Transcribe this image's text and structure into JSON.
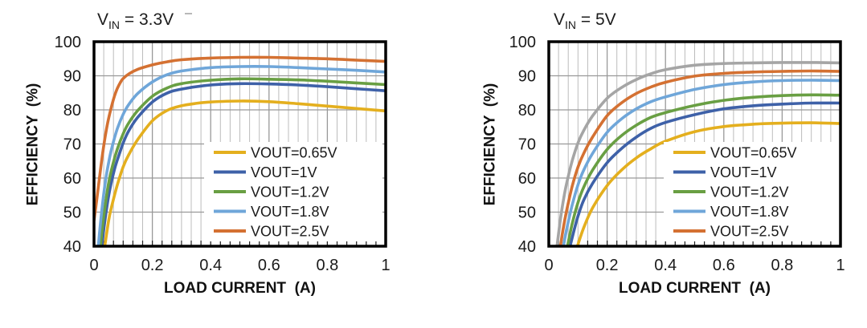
{
  "chart_data": [
    {
      "type": "line",
      "title": {
        "base": "V",
        "subscript": "IN",
        "rest": " = 3.3V",
        "text": "VIN = 3.3V"
      },
      "xlabel": "LOAD CURRENT  (A)",
      "ylabel": "EFFICIENCY  (%)",
      "xlim": [
        0,
        1
      ],
      "ylim": [
        40,
        100
      ],
      "xticks": {
        "values": [
          0,
          0.2,
          0.4,
          0.6,
          0.8,
          1
        ],
        "labels": [
          "0",
          "0.2",
          "0.4",
          "0.6",
          "0.8",
          "1"
        ]
      },
      "yticks": {
        "values": [
          40,
          50,
          60,
          70,
          80,
          90,
          100
        ],
        "labels": [
          "40",
          "50",
          "60",
          "70",
          "80",
          "90",
          "100"
        ]
      },
      "x_minor_divisions": 30,
      "grid": {
        "minor_color": "#bcbcbc",
        "major_color": "#999999",
        "horizontal_color": "#999999",
        "on": true
      },
      "legend": {
        "position": "inside-lower-right",
        "items": [
          {
            "label": "VOUT=0.65V",
            "color": "#E4AF1E"
          },
          {
            "label": "VOUT=1V",
            "color": "#3E61A8"
          },
          {
            "label": "VOUT=1.2V",
            "color": "#699F43"
          },
          {
            "label": "VOUT=1.8V",
            "color": "#6FA6D9"
          },
          {
            "label": "VOUT=2.5V",
            "color": "#D47132"
          }
        ]
      },
      "series": [
        {
          "name": "VOUT=0.65V",
          "legend_label": "VOUT=0.65V",
          "color": "#E4AF1E",
          "points": [
            [
              0.037,
              40
            ],
            [
              0.05,
              47.5
            ],
            [
              0.06,
              51.5
            ],
            [
              0.08,
              58
            ],
            [
              0.1,
              63.3
            ],
            [
              0.12,
              67
            ],
            [
              0.15,
              71.3
            ],
            [
              0.2,
              76.8
            ],
            [
              0.25,
              79.8
            ],
            [
              0.3,
              81.2
            ],
            [
              0.35,
              81.9
            ],
            [
              0.4,
              82.3
            ],
            [
              0.5,
              82.6
            ],
            [
              0.6,
              82.4
            ],
            [
              0.7,
              81.8
            ],
            [
              0.8,
              81.1
            ],
            [
              0.9,
              80.4
            ],
            [
              1,
              79.7
            ]
          ]
        },
        {
          "name": "VOUT=1V",
          "legend_label": "VOUT=1V",
          "color": "#3E61A8",
          "points": [
            [
              0.027,
              40
            ],
            [
              0.035,
              46
            ],
            [
              0.045,
              52
            ],
            [
              0.055,
              57
            ],
            [
              0.07,
              62.5
            ],
            [
              0.08,
              65.3
            ],
            [
              0.1,
              70.3
            ],
            [
              0.12,
              74
            ],
            [
              0.15,
              77.8
            ],
            [
              0.2,
              82.3
            ],
            [
              0.25,
              84.9
            ],
            [
              0.3,
              86.1
            ],
            [
              0.4,
              87.3
            ],
            [
              0.5,
              87.7
            ],
            [
              0.6,
              87.6
            ],
            [
              0.7,
              87.3
            ],
            [
              0.8,
              86.8
            ],
            [
              0.9,
              86.2
            ],
            [
              1,
              85.6
            ]
          ]
        },
        {
          "name": "VOUT=1.2V",
          "legend_label": "VOUT=1.2V",
          "color": "#699F43",
          "points": [
            [
              0.022,
              40
            ],
            [
              0.03,
              46.5
            ],
            [
              0.04,
              53
            ],
            [
              0.05,
              58.5
            ],
            [
              0.06,
              62.5
            ],
            [
              0.08,
              68.5
            ],
            [
              0.1,
              73
            ],
            [
              0.12,
              76.3
            ],
            [
              0.15,
              79.8
            ],
            [
              0.2,
              84
            ],
            [
              0.25,
              86.4
            ],
            [
              0.3,
              87.7
            ],
            [
              0.4,
              88.7
            ],
            [
              0.5,
              89.1
            ],
            [
              0.6,
              89
            ],
            [
              0.7,
              88.8
            ],
            [
              0.8,
              88.4
            ],
            [
              0.9,
              87.9
            ],
            [
              1,
              87.4
            ]
          ]
        },
        {
          "name": "VOUT=1.8V",
          "legend_label": "VOUT=1.8V",
          "color": "#6FA6D9",
          "points": [
            [
              0.015,
              40
            ],
            [
              0.02,
              45
            ],
            [
              0.03,
              53
            ],
            [
              0.04,
              59.5
            ],
            [
              0.05,
              64.5
            ],
            [
              0.06,
              68.5
            ],
            [
              0.08,
              74.5
            ],
            [
              0.1,
              78.7
            ],
            [
              0.12,
              81.7
            ],
            [
              0.15,
              84.8
            ],
            [
              0.2,
              88.2
            ],
            [
              0.25,
              90.3
            ],
            [
              0.3,
              91.4
            ],
            [
              0.4,
              92.4
            ],
            [
              0.5,
              92.7
            ],
            [
              0.6,
              92.7
            ],
            [
              0.7,
              92.4
            ],
            [
              0.8,
              92
            ],
            [
              0.9,
              91.6
            ],
            [
              1,
              91.1
            ]
          ]
        },
        {
          "name": "VOUT=2.5V",
          "legend_label": "VOUT=2.5V",
          "color": "#D47132",
          "points": [
            [
              0,
              47.5
            ],
            [
              0.01,
              54
            ],
            [
              0.02,
              61
            ],
            [
              0.03,
              67.5
            ],
            [
              0.04,
              73
            ],
            [
              0.05,
              77.5
            ],
            [
              0.06,
              81
            ],
            [
              0.07,
              84
            ],
            [
              0.08,
              86.3
            ],
            [
              0.09,
              88
            ],
            [
              0.1,
              89.2
            ],
            [
              0.12,
              90.6
            ],
            [
              0.15,
              91.9
            ],
            [
              0.2,
              93.2
            ],
            [
              0.25,
              94.1
            ],
            [
              0.3,
              94.7
            ],
            [
              0.4,
              95.2
            ],
            [
              0.5,
              95.4
            ],
            [
              0.6,
              95.4
            ],
            [
              0.7,
              95.2
            ],
            [
              0.8,
              95
            ],
            [
              0.9,
              94.6
            ],
            [
              1,
              94.2
            ]
          ]
        }
      ]
    },
    {
      "type": "line",
      "title": {
        "base": "V",
        "subscript": "IN",
        "rest": " = 5V",
        "text": "VIN = 5V"
      },
      "xlabel": "LOAD CURRENT  (A)",
      "ylabel": "EFFICIENCY  (%)",
      "xlim": [
        0,
        1
      ],
      "ylim": [
        40,
        100
      ],
      "xticks": {
        "values": [
          0,
          0.2,
          0.4,
          0.6,
          0.8,
          1
        ],
        "labels": [
          "0",
          "0.2",
          "0.4",
          "0.6",
          "0.8",
          "1"
        ]
      },
      "yticks": {
        "values": [
          40,
          50,
          60,
          70,
          80,
          90,
          100
        ],
        "labels": [
          "40",
          "50",
          "60",
          "70",
          "80",
          "90",
          "100"
        ]
      },
      "x_minor_divisions": 30,
      "grid": {
        "minor_color": "#bcbcbc",
        "major_color": "#999999",
        "horizontal_color": "#999999",
        "on": true
      },
      "legend": {
        "position": "inside-lower-right",
        "items": [
          {
            "label": "VOUT=0.65V",
            "color": "#E4AF1E"
          },
          {
            "label": "VOUT=1V",
            "color": "#3E61A8"
          },
          {
            "label": "VOUT=1.2V",
            "color": "#699F43"
          },
          {
            "label": "VOUT=1.8V",
            "color": "#6FA6D9"
          },
          {
            "label": "VOUT=2.5V",
            "color": "#D47132"
          }
        ]
      },
      "series": [
        {
          "name": "VOUT=0.65V",
          "legend_label": "VOUT=0.65V",
          "color": "#E4AF1E",
          "points": [
            [
              0.098,
              40
            ],
            [
              0.12,
              45.5
            ],
            [
              0.15,
              51.2
            ],
            [
              0.2,
              57.8
            ],
            [
              0.25,
              62.4
            ],
            [
              0.3,
              65.9
            ],
            [
              0.35,
              68.6
            ],
            [
              0.4,
              70.8
            ],
            [
              0.5,
              73.6
            ],
            [
              0.6,
              75.1
            ],
            [
              0.7,
              75.8
            ],
            [
              0.8,
              76.1
            ],
            [
              0.9,
              76.2
            ],
            [
              1,
              76
            ]
          ]
        },
        {
          "name": "VOUT=1V",
          "legend_label": "VOUT=1V",
          "color": "#3E61A8",
          "points": [
            [
              0.073,
              40
            ],
            [
              0.09,
              45.8
            ],
            [
              0.1,
              48.8
            ],
            [
              0.12,
              53.6
            ],
            [
              0.15,
              58.4
            ],
            [
              0.2,
              64.5
            ],
            [
              0.25,
              68.7
            ],
            [
              0.3,
              72
            ],
            [
              0.35,
              74.6
            ],
            [
              0.4,
              76.3
            ],
            [
              0.5,
              78.6
            ],
            [
              0.6,
              80.3
            ],
            [
              0.7,
              81.2
            ],
            [
              0.8,
              81.7
            ],
            [
              0.9,
              82
            ],
            [
              1,
              82
            ]
          ]
        },
        {
          "name": "VOUT=1.2V",
          "legend_label": "VOUT=1.2V",
          "color": "#699F43",
          "points": [
            [
              0.064,
              40
            ],
            [
              0.08,
              46.5
            ],
            [
              0.1,
              52.8
            ],
            [
              0.12,
              57.4
            ],
            [
              0.15,
              62.3
            ],
            [
              0.2,
              68.4
            ],
            [
              0.25,
              72.5
            ],
            [
              0.3,
              75.5
            ],
            [
              0.35,
              77.8
            ],
            [
              0.4,
              79.2
            ],
            [
              0.5,
              81.3
            ],
            [
              0.6,
              82.8
            ],
            [
              0.7,
              83.7
            ],
            [
              0.8,
              84.2
            ],
            [
              0.9,
              84.4
            ],
            [
              1,
              84.3
            ]
          ]
        },
        {
          "name": "VOUT=1.8V",
          "legend_label": "VOUT=1.8V",
          "color": "#6FA6D9",
          "points": [
            [
              0.05,
              40
            ],
            [
              0.06,
              44.5
            ],
            [
              0.08,
              52
            ],
            [
              0.1,
              58
            ],
            [
              0.12,
              62.4
            ],
            [
              0.15,
              67.2
            ],
            [
              0.2,
              73.4
            ],
            [
              0.25,
              77.4
            ],
            [
              0.3,
              80.3
            ],
            [
              0.35,
              82.4
            ],
            [
              0.4,
              83.8
            ],
            [
              0.5,
              86
            ],
            [
              0.6,
              87.4
            ],
            [
              0.7,
              88.2
            ],
            [
              0.8,
              88.6
            ],
            [
              0.9,
              88.7
            ],
            [
              1,
              88.6
            ]
          ]
        },
        {
          "name": "VOUT=2.5V",
          "legend_label": "VOUT=2.5V",
          "color": "#D47132",
          "points": [
            [
              0.04,
              40
            ],
            [
              0.05,
              45.5
            ],
            [
              0.06,
              50
            ],
            [
              0.08,
              57.5
            ],
            [
              0.1,
              63.2
            ],
            [
              0.12,
              67.3
            ],
            [
              0.15,
              72
            ],
            [
              0.2,
              78.3
            ],
            [
              0.25,
              82.1
            ],
            [
              0.3,
              84.8
            ],
            [
              0.35,
              86.7
            ],
            [
              0.4,
              88.1
            ],
            [
              0.5,
              89.9
            ],
            [
              0.6,
              90.7
            ],
            [
              0.7,
              91.1
            ],
            [
              0.8,
              91.3
            ],
            [
              0.9,
              91.4
            ],
            [
              1,
              91.3
            ]
          ]
        },
        {
          "name": "unlabeled-gray-top-curve",
          "legend_label": null,
          "color": "#A5A5A5",
          "points": [
            [
              0.028,
              40
            ],
            [
              0.04,
              48
            ],
            [
              0.05,
              53.5
            ],
            [
              0.06,
              58
            ],
            [
              0.08,
              65
            ],
            [
              0.1,
              70.3
            ],
            [
              0.12,
              74
            ],
            [
              0.15,
              78.2
            ],
            [
              0.2,
              83.4
            ],
            [
              0.25,
              86.6
            ],
            [
              0.3,
              88.9
            ],
            [
              0.35,
              90.6
            ],
            [
              0.4,
              91.8
            ],
            [
              0.5,
              93.1
            ],
            [
              0.6,
              93.6
            ],
            [
              0.7,
              93.8
            ],
            [
              0.8,
              93.9
            ],
            [
              0.9,
              93.9
            ],
            [
              1,
              93.8
            ]
          ]
        }
      ]
    }
  ]
}
